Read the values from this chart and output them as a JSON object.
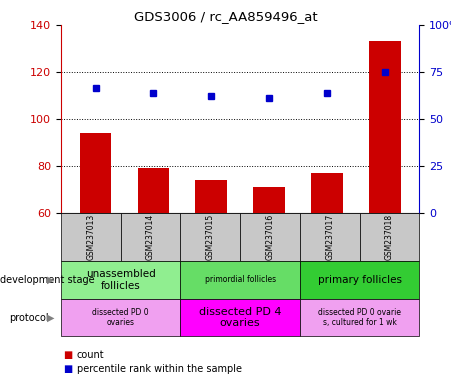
{
  "title": "GDS3006 / rc_AA859496_at",
  "samples": [
    "GSM237013",
    "GSM237014",
    "GSM237015",
    "GSM237016",
    "GSM237017",
    "GSM237018"
  ],
  "counts": [
    94,
    79,
    74,
    71,
    77,
    133
  ],
  "percentile_ranks": [
    113,
    111,
    110,
    109,
    111,
    120
  ],
  "ylim_left": [
    60,
    140
  ],
  "ylim_right": [
    0,
    100
  ],
  "yticks_left": [
    60,
    80,
    100,
    120,
    140
  ],
  "yticks_right": [
    0,
    25,
    50,
    75,
    100
  ],
  "yticks_right_labels": [
    "0",
    "25",
    "50",
    "75",
    "100%"
  ],
  "bar_color": "#cc0000",
  "dot_color": "#0000cc",
  "dev_stage_groups": [
    {
      "label": "unassembled\nfollicles",
      "start": 0,
      "end": 2,
      "color": "#90ee90",
      "fontsize": 7.5
    },
    {
      "label": "primordial follicles",
      "start": 2,
      "end": 4,
      "color": "#66dd66",
      "fontsize": 5.5
    },
    {
      "label": "primary follicles",
      "start": 4,
      "end": 6,
      "color": "#33cc33",
      "fontsize": 7.5
    }
  ],
  "protocol_groups": [
    {
      "label": "dissected PD 0\novaries",
      "start": 0,
      "end": 2,
      "color": "#f0a0f0",
      "fontsize": 5.5
    },
    {
      "label": "dissected PD 4\novaries",
      "start": 2,
      "end": 4,
      "color": "#ff00ff",
      "fontsize": 8
    },
    {
      "label": "dissected PD 0 ovarie\ns, cultured for 1 wk",
      "start": 4,
      "end": 6,
      "color": "#f0a0f0",
      "fontsize": 5.5
    }
  ],
  "sample_bg_color": "#c8c8c8",
  "legend_items": [
    {
      "color": "#cc0000",
      "label": "count"
    },
    {
      "color": "#0000cc",
      "label": "percentile rank within the sample"
    }
  ],
  "left_labels": [
    {
      "text": "development stage",
      "row": 1
    },
    {
      "text": "protocol",
      "row": 2
    }
  ]
}
